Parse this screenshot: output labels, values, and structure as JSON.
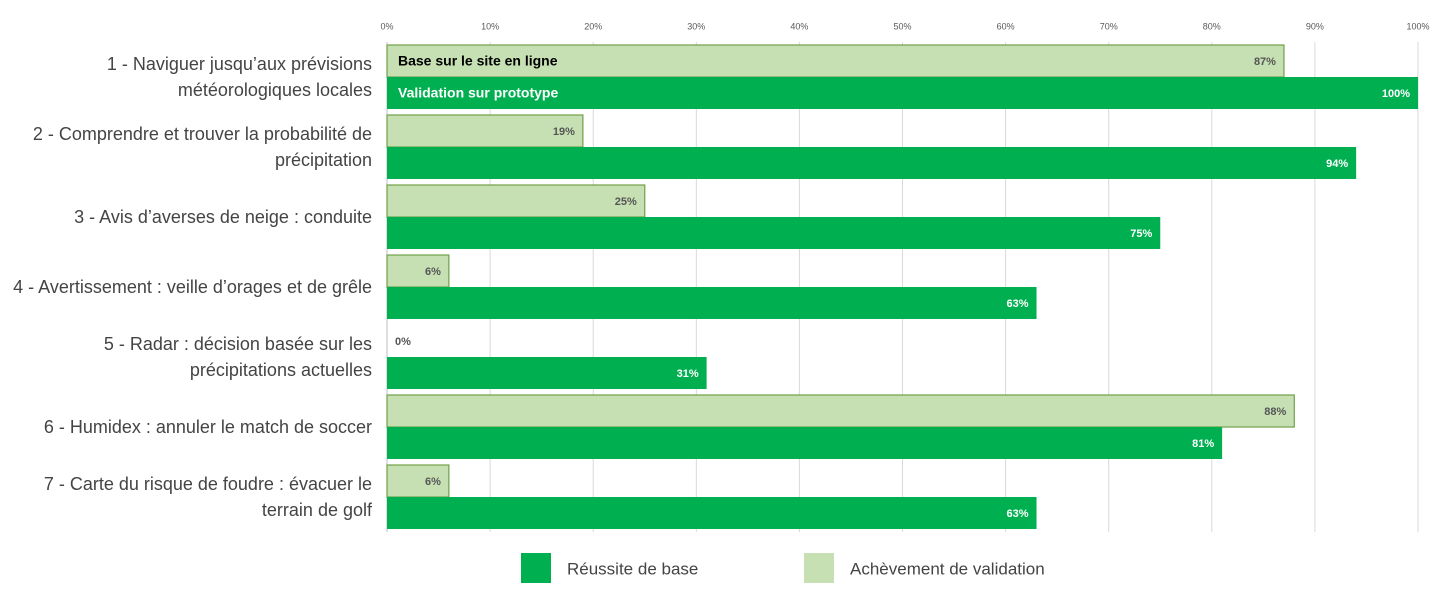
{
  "chart_data": {
    "type": "hbar",
    "categories": [
      "1 - Naviguer jusqu’aux prévisions météorologiques locales",
      "2 - Comprendre et trouver la probabilité de précipitation",
      "3 - Avis d’averses de neige : conduite",
      "4 - Avertissement : veille d’orages et de grêle",
      "5 - Radar : décision basée sur les précipitations actuelles",
      "6 - Humidex : annuler le match de soccer",
      "7 - Carte du risque de foudre : évacuer le terrain de golf"
    ],
    "series": [
      {
        "name": "Réussite de base",
        "color": "#00b050",
        "values": [
          100,
          94,
          75,
          63,
          31,
          81,
          63
        ],
        "value_labels": [
          "100%",
          "94%",
          "75%",
          "63%",
          "31%",
          "81%",
          "63%"
        ]
      },
      {
        "name": "Achèvement de validation",
        "color": "#c6e0b4",
        "values": [
          87,
          19,
          25,
          6,
          0,
          88,
          6
        ],
        "value_labels": [
          "87%",
          "19%",
          "25%",
          "6%",
          "0%",
          "88%",
          "6%"
        ]
      }
    ],
    "annotations": [
      "Base sur le site en ligne",
      "Validation sur prototype"
    ],
    "xlim": [
      0,
      100
    ],
    "xticks": [
      {
        "value": 0,
        "label": "0%"
      },
      {
        "value": 10,
        "label": "10%"
      },
      {
        "value": 20,
        "label": "20%"
      },
      {
        "value": 30,
        "label": "30%"
      },
      {
        "value": 40,
        "label": "40%"
      },
      {
        "value": 50,
        "label": "50%"
      },
      {
        "value": 60,
        "label": "60%"
      },
      {
        "value": 70,
        "label": "70%"
      },
      {
        "value": 80,
        "label": "80%"
      },
      {
        "value": 90,
        "label": "90%"
      },
      {
        "value": 100,
        "label": "100%"
      }
    ],
    "grid": true
  }
}
